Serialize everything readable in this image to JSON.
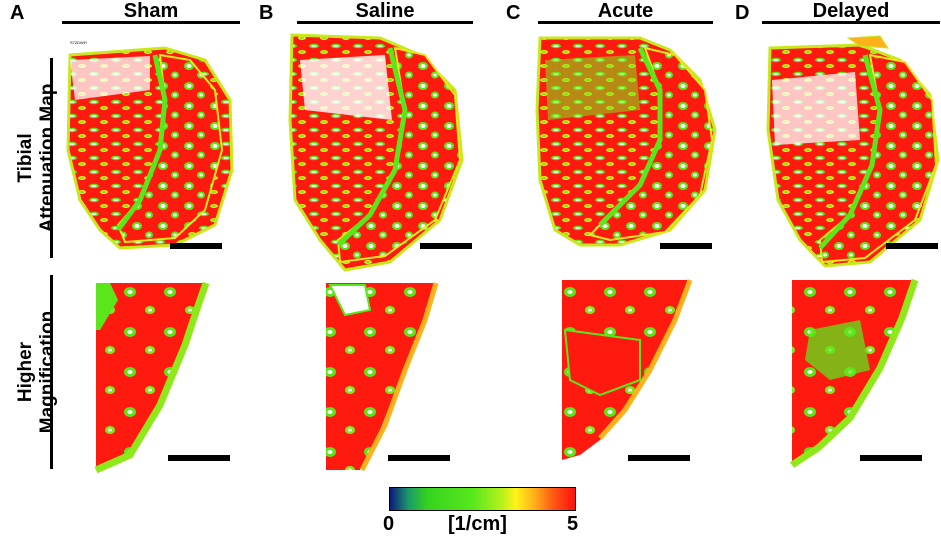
{
  "columns": [
    {
      "letter": "A",
      "title": "Sham"
    },
    {
      "letter": "B",
      "title": "Saline"
    },
    {
      "letter": "C",
      "title": "Acute"
    },
    {
      "letter": "D",
      "title": "Delayed"
    }
  ],
  "rows": [
    {
      "label": "Tibial\nAttenuation Map"
    },
    {
      "label": "Higher\nMagnification"
    }
  ],
  "tiny_label": "S72DWH",
  "colorbar": {
    "min_label": "0",
    "unit_label": "[1/cm]",
    "max_label": "5",
    "colors": [
      "#0b1a7a",
      "#35d21e",
      "#fff21a",
      "#ff1010"
    ]
  }
}
